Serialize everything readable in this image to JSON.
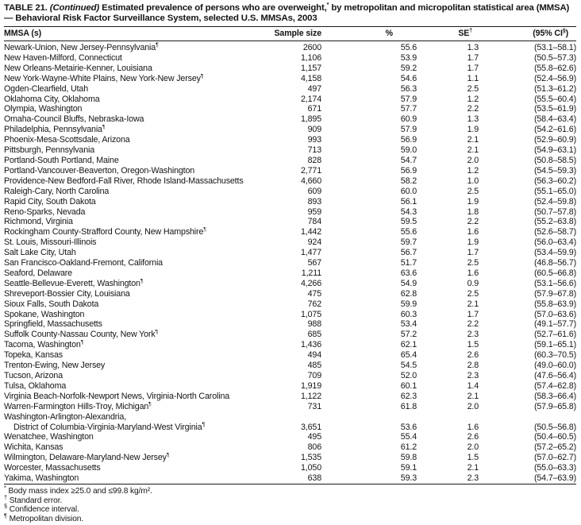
{
  "title": {
    "label": "TABLE 21.",
    "continued": "(Continued)",
    "text_before_star": "Estimated prevalence of persons who are overweight,",
    "star": "*",
    "text_after_star": "by metropolitan and micropolitan statistical area (MMSA) — Behavioral Risk Factor Surveillance System, selected U.S. MMSAs, 2003"
  },
  "columns": {
    "mmsa": "MMSA (s)",
    "sample": "Sample size",
    "pct": "%",
    "se": "SE",
    "se_sup": "†",
    "ci": "(95% CI",
    "ci_sup": "§",
    "ci_close": ")"
  },
  "rows": [
    {
      "name": "Newark-Union, New Jersey-Pennsylvania",
      "sup": "¶",
      "sample": "2600",
      "pct": "55.6",
      "se": "1.3",
      "ci": "(53.1–58.1)"
    },
    {
      "name": "New Haven-Milford, Connecticut",
      "sample": "1,106",
      "pct": "53.9",
      "se": "1.7",
      "ci": "(50.5–57.3)"
    },
    {
      "name": "New Orleans-Metairie-Kenner, Louisiana",
      "sample": "1,157",
      "pct": "59.2",
      "se": "1.7",
      "ci": "(55.8–62.6)"
    },
    {
      "name": "New York-Wayne-White Plains, New York-New Jersey",
      "sup": "¶",
      "sample": "4,158",
      "pct": "54.6",
      "se": "1.1",
      "ci": "(52.4–56.9)"
    },
    {
      "name": "Ogden-Clearfield, Utah",
      "sample": "497",
      "pct": "56.3",
      "se": "2.5",
      "ci": "(51.3–61.2)"
    },
    {
      "name": "Oklahoma City, Oklahoma",
      "sample": "2,174",
      "pct": "57.9",
      "se": "1.2",
      "ci": "(55.5–60.4)"
    },
    {
      "name": "Olympia, Washington",
      "sample": "671",
      "pct": "57.7",
      "se": "2.2",
      "ci": "(53.5–61.9)"
    },
    {
      "name": "Omaha-Council Bluffs, Nebraska-Iowa",
      "sample": "1,895",
      "pct": "60.9",
      "se": "1.3",
      "ci": "(58.4–63.4)"
    },
    {
      "name": "Philadelphia, Pennsylvania",
      "sup": "¶",
      "sample": "909",
      "pct": "57.9",
      "se": "1.9",
      "ci": "(54.2–61.6)"
    },
    {
      "name": "Phoenix-Mesa-Scottsdale, Arizona",
      "sample": "993",
      "pct": "56.9",
      "se": "2.1",
      "ci": "(52.9–60.9)"
    },
    {
      "name": "Pittsburgh, Pennsylvania",
      "sample": "713",
      "pct": "59.0",
      "se": "2.1",
      "ci": "(54.9–63.1)"
    },
    {
      "name": "Portland-South Portland, Maine",
      "sample": "828",
      "pct": "54.7",
      "se": "2.0",
      "ci": "(50.8–58.5)"
    },
    {
      "name": "Portland-Vancouver-Beaverton, Oregon-Washington",
      "sample": "2,771",
      "pct": "56.9",
      "se": "1.2",
      "ci": "(54.5–59.3)"
    },
    {
      "name": "Providence-New Bedford-Fall River, Rhode Island-Massachusetts",
      "sample": "4,660",
      "pct": "58.2",
      "se": "1.0",
      "ci": "(56.3–60.2)"
    },
    {
      "name": "Raleigh-Cary, North Carolina",
      "sample": "609",
      "pct": "60.0",
      "se": "2.5",
      "ci": "(55.1–65.0)"
    },
    {
      "name": "Rapid City, South Dakota",
      "sample": "893",
      "pct": "56.1",
      "se": "1.9",
      "ci": "(52.4–59.8)"
    },
    {
      "name": "Reno-Sparks, Nevada",
      "sample": "959",
      "pct": "54.3",
      "se": "1.8",
      "ci": "(50.7–57.8)"
    },
    {
      "name": "Richmond, Virginia",
      "sample": "784",
      "pct": "59.5",
      "se": "2.2",
      "ci": "(55.2–63.8)"
    },
    {
      "name": "Rockingham County-Strafford County, New Hampshire",
      "sup": "¶",
      "sample": "1,442",
      "pct": "55.6",
      "se": "1.6",
      "ci": "(52.6–58.7)"
    },
    {
      "name": "St. Louis, Missouri-Illinois",
      "sample": "924",
      "pct": "59.7",
      "se": "1.9",
      "ci": "(56.0–63.4)"
    },
    {
      "name": "Salt Lake City, Utah",
      "sample": "1,477",
      "pct": "56.7",
      "se": "1.7",
      "ci": "(53.4–59.9)"
    },
    {
      "name": "San Francisco-Oakland-Fremont, California",
      "sample": "567",
      "pct": "51.7",
      "se": "2.5",
      "ci": "(46.8–56.7)"
    },
    {
      "name": "Seaford, Delaware",
      "sample": "1,211",
      "pct": "63.6",
      "se": "1.6",
      "ci": "(60.5–66.8)"
    },
    {
      "name": "Seattle-Bellevue-Everett, Washington",
      "sup": "¶",
      "sample": "4,266",
      "pct": "54.9",
      "se": "0.9",
      "ci": "(53.1–56.6)"
    },
    {
      "name": "Shreveport-Bossier City, Louisiana",
      "sample": "475",
      "pct": "62.8",
      "se": "2.5",
      "ci": "(57.9–67.8)"
    },
    {
      "name": "Sioux Falls, South Dakota",
      "sample": "762",
      "pct": "59.9",
      "se": "2.1",
      "ci": "(55.8–63.9)"
    },
    {
      "name": "Spokane, Washington",
      "sample": "1,075",
      "pct": "60.3",
      "se": "1.7",
      "ci": "(57.0–63.6)"
    },
    {
      "name": "Springfield, Massachusetts",
      "sample": "988",
      "pct": "53.4",
      "se": "2.2",
      "ci": "(49.1–57.7)"
    },
    {
      "name": "Suffolk County-Nassau County, New York",
      "sup": "¶",
      "sample": "685",
      "pct": "57.2",
      "se": "2.3",
      "ci": "(52.7–61.6)"
    },
    {
      "name": "Tacoma, Washington",
      "sup": "¶",
      "sample": "1,436",
      "pct": "62.1",
      "se": "1.5",
      "ci": "(59.1–65.1)"
    },
    {
      "name": "Topeka, Kansas",
      "sample": "494",
      "pct": "65.4",
      "se": "2.6",
      "ci": "(60.3–70.5)"
    },
    {
      "name": "Trenton-Ewing, New Jersey",
      "sample": "485",
      "pct": "54.5",
      "se": "2.8",
      "ci": "(49.0–60.0)"
    },
    {
      "name": "Tucson, Arizona",
      "sample": "709",
      "pct": "52.0",
      "se": "2.3",
      "ci": "(47.6–56.4)"
    },
    {
      "name": "Tulsa, Oklahoma",
      "sample": "1,919",
      "pct": "60.1",
      "se": "1.4",
      "ci": "(57.4–62.8)"
    },
    {
      "name": "Virginia Beach-Norfolk-Newport News, Virginia-North Carolina",
      "sample": "1,122",
      "pct": "62.3",
      "se": "2.1",
      "ci": "(58.3–66.4)"
    },
    {
      "name": "Warren-Farmington Hills-Troy, Michigan",
      "sup": "¶",
      "sample": "731",
      "pct": "61.8",
      "se": "2.0",
      "ci": "(57.9–65.8)"
    },
    {
      "name": "Washington-Arlington-Alexandria,",
      "name2": "District of Columbia-Virginia-Maryland-West Virginia",
      "sup2": "¶",
      "sample": "3,651",
      "pct": "53.6",
      "se": "1.6",
      "ci": "(50.5–56.8)"
    },
    {
      "name": "Wenatchee, Washington",
      "sample": "495",
      "pct": "55.4",
      "se": "2.6",
      "ci": "(50.4–60.5)"
    },
    {
      "name": "Wichita, Kansas",
      "sample": "806",
      "pct": "61.2",
      "se": "2.0",
      "ci": "(57.2–65.2)"
    },
    {
      "name": "Wilmington, Delaware-Maryland-New Jersey",
      "sup": "¶",
      "sample": "1,535",
      "pct": "59.8",
      "se": "1.5",
      "ci": "(57.0–62.7)"
    },
    {
      "name": "Worcester, Massachusetts",
      "sample": "1,050",
      "pct": "59.1",
      "se": "2.1",
      "ci": "(55.0–63.3)"
    },
    {
      "name": "Yakima, Washington",
      "sample": "638",
      "pct": "59.3",
      "se": "2.3",
      "ci": "(54.7–63.9)"
    }
  ],
  "footnotes": [
    {
      "sym": "*",
      "text": "Body mass index ≥25.0 and ≤99.8 kg/m²."
    },
    {
      "sym": "†",
      "text": "Standard error."
    },
    {
      "sym": "§",
      "text": "Confidence interval."
    },
    {
      "sym": "¶",
      "text": "Metropolitan division."
    }
  ]
}
